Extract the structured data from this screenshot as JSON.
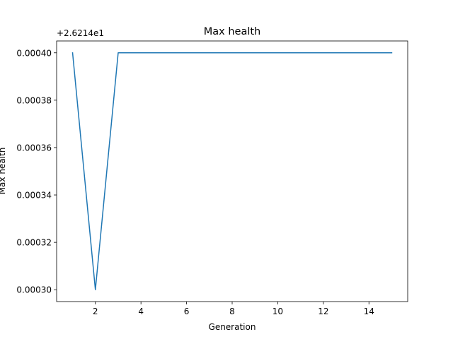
{
  "chart_data": {
    "type": "line",
    "title": "Max health",
    "xlabel": "Generation",
    "ylabel": "Max health",
    "y_offset_label": "+2.6214e1",
    "xlim": [
      0.3,
      15.7
    ],
    "ylim": [
      0.000295,
      0.000405
    ],
    "x_ticks": [
      2,
      4,
      6,
      8,
      10,
      12,
      14
    ],
    "x_tick_labels": [
      "2",
      "4",
      "6",
      "8",
      "10",
      "12",
      "14"
    ],
    "y_ticks": [
      0.0003,
      0.00032,
      0.00034,
      0.00036,
      0.00038,
      0.0004
    ],
    "y_tick_labels": [
      "0.00030",
      "0.00032",
      "0.00034",
      "0.00036",
      "0.00038",
      "0.00040"
    ],
    "grid": false,
    "series": [
      {
        "color": "#1f77b4",
        "x": [
          1,
          2,
          3,
          4,
          5,
          6,
          7,
          8,
          9,
          10,
          11,
          12,
          13,
          14,
          15
        ],
        "y": [
          0.0004,
          0.0003,
          0.0004,
          0.0004,
          0.0004,
          0.0004,
          0.0004,
          0.0004,
          0.0004,
          0.0004,
          0.0004,
          0.0004,
          0.0004,
          0.0004,
          0.0004
        ]
      }
    ]
  }
}
